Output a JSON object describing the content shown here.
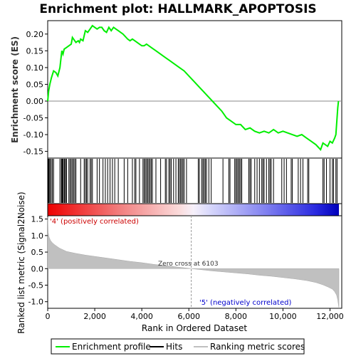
{
  "title": "Enrichment plot: HALLMARK_APOPTOSIS",
  "chart_data": [
    {
      "type": "line",
      "panel": "enrichment",
      "ylabel": "Enrichment score (ES)",
      "ylim": [
        -0.17,
        0.24
      ],
      "yticks": [
        -0.15,
        -0.1,
        -0.05,
        0.0,
        0.05,
        0.1,
        0.15,
        0.2
      ],
      "ytick_labels": [
        "-0.15",
        "-0.10",
        "-0.05",
        "0.00",
        "0.05",
        "0.10",
        "0.15",
        "0.20"
      ],
      "xlim": [
        0,
        12500
      ],
      "series": [
        {
          "name": "Enrichment profile",
          "color": "#00ee00",
          "x": [
            0,
            40,
            90,
            160,
            250,
            350,
            430,
            520,
            600,
            650,
            700,
            800,
            900,
            1000,
            1050,
            1100,
            1200,
            1300,
            1350,
            1400,
            1500,
            1600,
            1700,
            1800,
            1900,
            2000,
            2100,
            2200,
            2300,
            2400,
            2500,
            2600,
            2700,
            2800,
            2900,
            3000,
            3200,
            3400,
            3500,
            3600,
            3700,
            3800,
            3900,
            4000,
            4100,
            4200,
            4300,
            4400,
            4600,
            4800,
            5000,
            5200,
            5400,
            5600,
            5800,
            6000,
            6200,
            6400,
            6600,
            6800,
            7000,
            7200,
            7400,
            7600,
            7800,
            8000,
            8200,
            8400,
            8600,
            8800,
            9000,
            9200,
            9400,
            9600,
            9800,
            10000,
            10200,
            10400,
            10600,
            10800,
            11000,
            11200,
            11400,
            11600,
            11700,
            11800,
            11900,
            12000,
            12100,
            12200,
            12250,
            12300,
            12330,
            12360
          ],
          "y": [
            0.0,
            0.03,
            0.05,
            0.07,
            0.09,
            0.085,
            0.075,
            0.1,
            0.15,
            0.14,
            0.155,
            0.16,
            0.165,
            0.17,
            0.19,
            0.185,
            0.175,
            0.18,
            0.175,
            0.185,
            0.18,
            0.21,
            0.205,
            0.215,
            0.225,
            0.22,
            0.215,
            0.22,
            0.22,
            0.21,
            0.205,
            0.22,
            0.21,
            0.22,
            0.215,
            0.21,
            0.2,
            0.185,
            0.18,
            0.185,
            0.18,
            0.175,
            0.17,
            0.165,
            0.165,
            0.17,
            0.165,
            0.16,
            0.15,
            0.14,
            0.13,
            0.12,
            0.11,
            0.1,
            0.09,
            0.075,
            0.06,
            0.045,
            0.03,
            0.015,
            0.0,
            -0.015,
            -0.03,
            -0.05,
            -0.06,
            -0.07,
            -0.07,
            -0.085,
            -0.08,
            -0.09,
            -0.095,
            -0.09,
            -0.095,
            -0.085,
            -0.095,
            -0.09,
            -0.095,
            -0.1,
            -0.105,
            -0.1,
            -0.11,
            -0.12,
            -0.13,
            -0.145,
            -0.125,
            -0.13,
            -0.135,
            -0.12,
            -0.125,
            -0.11,
            -0.1,
            -0.05,
            -0.02,
            0.0
          ]
        }
      ]
    },
    {
      "type": "scatter",
      "panel": "hits",
      "series": [
        {
          "name": "Hits",
          "color": "#000000",
          "x": [
            30,
            60,
            100,
            150,
            200,
            250,
            520,
            580,
            600,
            630,
            650,
            700,
            720,
            760,
            800,
            900,
            950,
            1000,
            1050,
            1100,
            1150,
            1200,
            1400,
            1550,
            1600,
            1650,
            1700,
            1800,
            1850,
            1900,
            2100,
            2200,
            2350,
            2450,
            2550,
            2650,
            2750,
            2850,
            3000,
            3250,
            3400,
            3600,
            3700,
            3750,
            3900,
            4050,
            4100,
            4150,
            4200,
            4250,
            4300,
            4350,
            4400,
            4450,
            4600,
            4800,
            5000,
            5050,
            5150,
            5200,
            5250,
            5350,
            5450,
            5550,
            5600,
            5650,
            5700,
            5750,
            5800,
            5900,
            6400,
            6450,
            6550,
            6600,
            6650,
            6700,
            6750,
            6850,
            6950,
            7450,
            7700,
            7750,
            7950,
            8000,
            8050,
            8100,
            8150,
            8200,
            8250,
            8550,
            8600,
            8650,
            8800,
            8900,
            9000,
            9100,
            9150,
            9200,
            9300,
            9400,
            9450,
            9500,
            9600,
            9950,
            10050,
            10150,
            10350,
            10400,
            10650,
            10750,
            10850,
            11050,
            11100,
            11700,
            11750,
            11850,
            12000,
            12100,
            12150,
            12250,
            12300
          ]
        }
      ]
    },
    {
      "type": "area",
      "panel": "ranked_metric",
      "xlabel": "Rank in Ordered Dataset",
      "ylabel": "Ranked list metric (Signal2Noise)",
      "xlim": [
        0,
        12500
      ],
      "ylim": [
        -1.2,
        1.6
      ],
      "xticks": [
        0,
        2000,
        4000,
        6000,
        8000,
        10000,
        12000
      ],
      "xtick_labels": [
        "0",
        "2,000",
        "4,000",
        "6,000",
        "8,000",
        "10,000",
        "12,000"
      ],
      "yticks": [
        -1.0,
        -0.5,
        0.0,
        0.5,
        1.0,
        1.5
      ],
      "ytick_labels": [
        "-1.0",
        "-0.5",
        "0.0",
        "0.5",
        "1.0",
        "1.5"
      ],
      "series": [
        {
          "name": "Ranking metric scores",
          "color": "#c0c0c0",
          "x": [
            0,
            20,
            60,
            120,
            200,
            300,
            500,
            800,
            1200,
            1600,
            2000,
            2500,
            3000,
            3500,
            4000,
            4500,
            5000,
            5500,
            6000,
            6103,
            6500,
            7000,
            7500,
            8000,
            8500,
            9000,
            9500,
            10000,
            10500,
            11000,
            11400,
            11700,
            11900,
            12100,
            12200,
            12280,
            12330,
            12360,
            12380
          ],
          "y": [
            1.55,
            1.1,
            0.95,
            0.85,
            0.78,
            0.72,
            0.62,
            0.52,
            0.46,
            0.41,
            0.37,
            0.32,
            0.27,
            0.22,
            0.18,
            0.13,
            0.09,
            0.05,
            0.01,
            0.0,
            -0.03,
            -0.07,
            -0.1,
            -0.13,
            -0.16,
            -0.2,
            -0.23,
            -0.27,
            -0.31,
            -0.36,
            -0.42,
            -0.49,
            -0.55,
            -0.62,
            -0.7,
            -0.8,
            -0.95,
            -1.1,
            -1.2
          ]
        }
      ],
      "annotations": [
        "'4' (positively correlated)",
        "Zero cross at 6103",
        "'5' (negatively correlated)"
      ],
      "zero_cross": 6103
    }
  ],
  "legend": {
    "items": [
      {
        "label": "Enrichment profile",
        "color": "#00ee00"
      },
      {
        "label": "Hits",
        "color": "#000000"
      },
      {
        "label": "Ranking metric scores",
        "color": "#c0c0c0"
      }
    ]
  }
}
